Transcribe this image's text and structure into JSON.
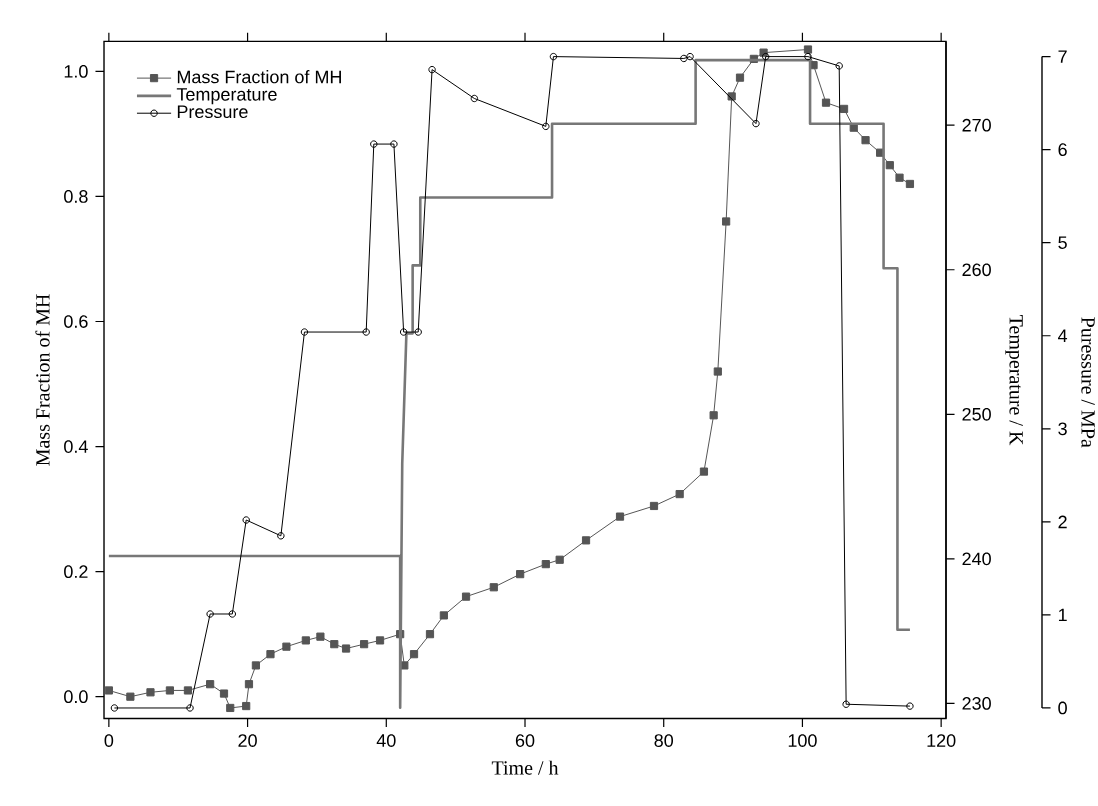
{
  "chart_data": {
    "type": "line",
    "xlabel": "Time / h",
    "ylabel": "Mass Fraction of MH",
    "y2label": "Temperature / K",
    "y3label": "Puressure / MPa",
    "xlim": [
      -0.7,
      120.7
    ],
    "xticks": [
      0,
      20,
      40,
      60,
      80,
      100,
      120
    ],
    "ylim": [
      -0.035,
      1.048
    ],
    "yticks": [
      {
        "value": 0,
        "label": "0.0"
      },
      0.2,
      0.4,
      0.6,
      0.8,
      {
        "value": 1,
        "label": "1.0"
      }
    ],
    "y2lim": [
      228.95,
      275.8
    ],
    "y2ticks": [
      230,
      240,
      250,
      260,
      270
    ],
    "y3lim": [
      0,
      7
    ],
    "y3ticks": [
      0,
      1,
      2,
      3,
      4,
      5,
      6,
      7
    ],
    "legend": "top left",
    "grid": false,
    "series": [
      {
        "name": "Mass Fraction of MH",
        "color": "#555555",
        "marker": "square",
        "axis": "y",
        "x": [
          0,
          3.1,
          6.0,
          8.8,
          11.4,
          14.6,
          16.6,
          17.5,
          19.8,
          20.2,
          21.2,
          23.3,
          25.6,
          28.4,
          30.5,
          32.5,
          34.2,
          36.8,
          39.1,
          42.0,
          42.6,
          44.0,
          46.3,
          48.3,
          51.5,
          55.5,
          59.3,
          63.0,
          65.0,
          68.8,
          73.7,
          78.6,
          82.3,
          85.8,
          87.2,
          87.8,
          89.0,
          89.8,
          91.0,
          93.0,
          94.4,
          100.8,
          101.6,
          103.4,
          106.0,
          107.4,
          109.1,
          111.2,
          112.6,
          114.0,
          115.5
        ],
        "values": [
          0.01,
          0.0,
          0.007,
          0.01,
          0.01,
          0.02,
          0.005,
          -0.018,
          -0.015,
          0.02,
          0.05,
          0.068,
          0.08,
          0.09,
          0.096,
          0.084,
          0.077,
          0.084,
          0.09,
          0.1,
          0.05,
          0.068,
          0.1,
          0.13,
          0.16,
          0.175,
          0.196,
          0.212,
          0.219,
          0.25,
          0.288,
          0.305,
          0.324,
          0.36,
          0.45,
          0.52,
          0.76,
          0.96,
          0.99,
          1.02,
          1.03,
          1.035,
          1.01,
          0.95,
          0.94,
          0.91,
          0.89,
          0.87,
          0.85,
          0.83,
          0.82
        ]
      },
      {
        "name": "Temperature",
        "color": "#777777",
        "marker": "none",
        "axis": "y2",
        "x": [
          0,
          42.0,
          42.0,
          42.3,
          42.9,
          43.8,
          43.8,
          44.9,
          44.9,
          63.9,
          63.9,
          84.6,
          84.6,
          101.1,
          101.1,
          111.7,
          111.7,
          113.7,
          113.7,
          115.5
        ],
        "values": [
          240.2,
          240.2,
          229.7,
          246.6,
          255.6,
          255.6,
          260.3,
          260.3,
          265.0,
          265.0,
          270.1,
          270.1,
          274.5,
          274.5,
          270.1,
          270.1,
          260.1,
          260.1,
          235.1,
          235.1
        ]
      },
      {
        "name": "Pressure",
        "color": "#000000",
        "marker": "circle",
        "axis": "y3",
        "x": [
          0.8,
          11.7,
          14.6,
          17.8,
          19.8,
          24.8,
          28.2,
          37.1,
          38.2,
          41.1,
          42.5,
          44.6,
          46.6,
          52.7,
          63.0,
          64.1,
          82.9,
          83.8,
          93.3,
          94.7,
          100.8,
          105.3,
          106.3,
          115.5
        ],
        "values": [
          0.0,
          0.0,
          1.01,
          1.01,
          2.02,
          1.85,
          4.04,
          4.04,
          6.06,
          6.06,
          4.04,
          4.04,
          6.86,
          6.55,
          6.25,
          7.0,
          6.98,
          7.0,
          6.28,
          7.0,
          7.0,
          6.9,
          0.04,
          0.02
        ]
      }
    ]
  }
}
